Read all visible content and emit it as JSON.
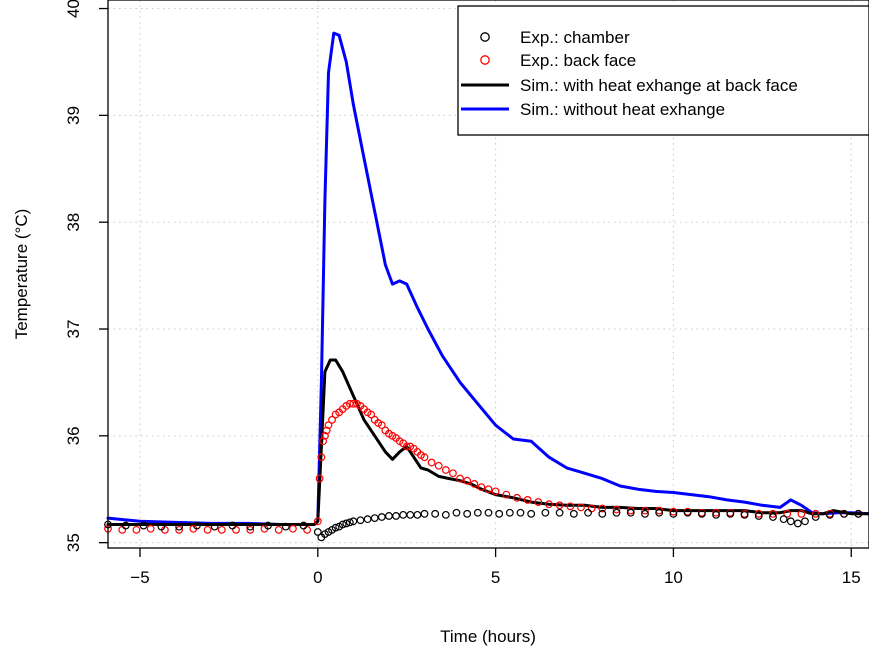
{
  "chart_data": {
    "type": "line",
    "title": "",
    "xlabel": "Time (hours)",
    "ylabel": "Temperature (°C)",
    "xlim": [
      -5.9,
      15.5
    ],
    "ylim": [
      34.95,
      40.08
    ],
    "x_ticks": [
      -5,
      0,
      5,
      10,
      15
    ],
    "x_tick_labels": [
      "−5",
      "0",
      "5",
      "10",
      "15"
    ],
    "y_ticks": [
      35,
      36,
      37,
      38,
      39,
      40
    ],
    "y_tick_labels": [
      "35",
      "36",
      "37",
      "38",
      "39",
      "40"
    ],
    "grid": true,
    "legend_position": "top-right",
    "legend": [
      {
        "label": "Exp.: chamber",
        "kind": "points",
        "color": "#000000"
      },
      {
        "label": "Exp.: back face",
        "kind": "points",
        "color": "#ff0000"
      },
      {
        "label": "Sim.: with heat exhange at back face",
        "kind": "line",
        "color": "#000000"
      },
      {
        "label": "Sim.: without heat exhange",
        "kind": "line",
        "color": "#0000ff"
      }
    ],
    "series": [
      {
        "name": "Sim.: without heat exhange",
        "kind": "line",
        "color": "#0000ff",
        "x": [
          -5.9,
          -5,
          -4,
          -3,
          -2,
          -1,
          -0.5,
          -0.1,
          0,
          0.1,
          0.2,
          0.3,
          0.45,
          0.6,
          0.8,
          1.0,
          1.3,
          1.6,
          1.9,
          2.1,
          2.3,
          2.5,
          2.8,
          3.1,
          3.5,
          4,
          4.5,
          5,
          5.5,
          6,
          6.5,
          7,
          7.5,
          8,
          8.5,
          9,
          9.5,
          10,
          10.5,
          11,
          11.5,
          12,
          12.5,
          13,
          13.3,
          13.6,
          13.9,
          14.2,
          14.6,
          15,
          15.5
        ],
        "y": [
          35.23,
          35.2,
          35.19,
          35.18,
          35.18,
          35.17,
          35.17,
          35.17,
          35.2,
          36.5,
          38.2,
          39.4,
          39.77,
          39.75,
          39.5,
          39.1,
          38.6,
          38.1,
          37.6,
          37.42,
          37.45,
          37.42,
          37.2,
          37.0,
          36.75,
          36.5,
          36.3,
          36.1,
          35.97,
          35.95,
          35.8,
          35.7,
          35.65,
          35.6,
          35.53,
          35.5,
          35.48,
          35.47,
          35.45,
          35.43,
          35.4,
          35.38,
          35.35,
          35.33,
          35.4,
          35.35,
          35.28,
          35.27,
          35.28,
          35.28,
          35.27
        ]
      },
      {
        "name": "Sim.: with heat exhange at back face",
        "kind": "line",
        "color": "#000000",
        "x": [
          -5.9,
          -5,
          -4,
          -3,
          -2,
          -1,
          -0.5,
          -0.1,
          0,
          0.1,
          0.2,
          0.35,
          0.5,
          0.7,
          0.9,
          1.1,
          1.3,
          1.6,
          1.9,
          2.1,
          2.3,
          2.5,
          2.7,
          2.9,
          3.1,
          3.4,
          3.7,
          4,
          4.3,
          4.6,
          5,
          5.5,
          6,
          6.5,
          7,
          7.5,
          8,
          8.5,
          9,
          9.5,
          10,
          10.5,
          11,
          11.5,
          12,
          12.5,
          13,
          13.3,
          13.6,
          13.9,
          14.2,
          14.5,
          15,
          15.5
        ],
        "y": [
          35.17,
          35.17,
          35.17,
          35.17,
          35.17,
          35.17,
          35.17,
          35.17,
          35.2,
          35.9,
          36.6,
          36.71,
          36.71,
          36.6,
          36.45,
          36.3,
          36.15,
          36.0,
          35.85,
          35.78,
          35.85,
          35.9,
          35.8,
          35.7,
          35.68,
          35.62,
          35.6,
          35.58,
          35.55,
          35.5,
          35.45,
          35.42,
          35.38,
          35.36,
          35.35,
          35.35,
          35.33,
          35.33,
          35.32,
          35.32,
          35.3,
          35.3,
          35.3,
          35.3,
          35.3,
          35.28,
          35.28,
          35.3,
          35.3,
          35.27,
          35.27,
          35.3,
          35.27,
          35.27
        ]
      },
      {
        "name": "Exp.: back face",
        "kind": "points",
        "color": "#ff0000",
        "x": [
          -5.9,
          -5.5,
          -5.1,
          -4.7,
          -4.3,
          -3.9,
          -3.5,
          -3.1,
          -2.7,
          -2.3,
          -1.9,
          -1.5,
          -1.1,
          -0.7,
          -0.3,
          0,
          0.05,
          0.1,
          0.15,
          0.2,
          0.25,
          0.3,
          0.4,
          0.5,
          0.6,
          0.7,
          0.8,
          0.9,
          1.0,
          1.1,
          1.2,
          1.3,
          1.4,
          1.5,
          1.6,
          1.7,
          1.8,
          1.9,
          2.0,
          2.1,
          2.2,
          2.3,
          2.4,
          2.5,
          2.6,
          2.7,
          2.8,
          2.9,
          3.0,
          3.2,
          3.4,
          3.6,
          3.8,
          4.0,
          4.2,
          4.4,
          4.6,
          4.8,
          5.0,
          5.3,
          5.6,
          5.9,
          6.2,
          6.5,
          6.8,
          7.1,
          7.4,
          7.7,
          8.0,
          8.4,
          8.8,
          9.2,
          9.6,
          10.0,
          10.4,
          10.8,
          11.2,
          11.6,
          12.0,
          12.4,
          12.8,
          13.2,
          13.6,
          14.0,
          14.4,
          14.8,
          15.2
        ],
        "y": [
          35.13,
          35.12,
          35.12,
          35.13,
          35.12,
          35.12,
          35.13,
          35.12,
          35.12,
          35.12,
          35.12,
          35.13,
          35.12,
          35.13,
          35.12,
          35.2,
          35.6,
          35.8,
          35.95,
          36.0,
          36.05,
          36.1,
          36.15,
          36.2,
          36.22,
          36.25,
          36.28,
          36.3,
          36.3,
          36.3,
          36.28,
          36.25,
          36.22,
          36.2,
          36.15,
          36.12,
          36.1,
          36.05,
          36.02,
          36.0,
          35.98,
          35.95,
          35.93,
          35.9,
          35.9,
          35.88,
          35.85,
          35.82,
          35.8,
          35.75,
          35.72,
          35.68,
          35.65,
          35.6,
          35.58,
          35.55,
          35.52,
          35.5,
          35.48,
          35.45,
          35.42,
          35.4,
          35.38,
          35.36,
          35.35,
          35.34,
          35.33,
          35.32,
          35.32,
          35.31,
          35.3,
          35.3,
          35.3,
          35.29,
          35.29,
          35.28,
          35.28,
          35.28,
          35.27,
          35.27,
          35.27,
          35.27,
          35.27,
          35.27,
          35.27,
          35.27,
          35.27
        ]
      },
      {
        "name": "Exp.: chamber",
        "kind": "points",
        "color": "#000000",
        "x": [
          -5.9,
          -5.4,
          -4.9,
          -4.4,
          -3.9,
          -3.4,
          -2.9,
          -2.4,
          -1.9,
          -1.4,
          -0.9,
          -0.4,
          0,
          0.1,
          0.2,
          0.3,
          0.4,
          0.5,
          0.6,
          0.7,
          0.8,
          0.9,
          1.0,
          1.2,
          1.4,
          1.6,
          1.8,
          2.0,
          2.2,
          2.4,
          2.6,
          2.8,
          3.0,
          3.3,
          3.6,
          3.9,
          4.2,
          4.5,
          4.8,
          5.1,
          5.4,
          5.7,
          6.0,
          6.4,
          6.8,
          7.2,
          7.6,
          8.0,
          8.4,
          8.8,
          9.2,
          9.6,
          10.0,
          10.4,
          10.8,
          11.2,
          11.6,
          12.0,
          12.4,
          12.8,
          13.1,
          13.3,
          13.5,
          13.7,
          14.0,
          14.4,
          14.8,
          15.2
        ],
        "y": [
          35.17,
          35.16,
          35.16,
          35.15,
          35.15,
          35.16,
          35.15,
          35.16,
          35.15,
          35.16,
          35.15,
          35.16,
          35.1,
          35.05,
          35.08,
          35.1,
          35.12,
          35.14,
          35.15,
          35.17,
          35.18,
          35.19,
          35.2,
          35.21,
          35.22,
          35.23,
          35.24,
          35.25,
          35.25,
          35.26,
          35.26,
          35.26,
          35.27,
          35.27,
          35.26,
          35.28,
          35.27,
          35.28,
          35.28,
          35.27,
          35.28,
          35.28,
          35.27,
          35.28,
          35.28,
          35.27,
          35.28,
          35.27,
          35.28,
          35.28,
          35.27,
          35.28,
          35.27,
          35.28,
          35.27,
          35.26,
          35.27,
          35.26,
          35.25,
          35.24,
          35.22,
          35.2,
          35.18,
          35.2,
          35.24,
          35.26,
          35.27,
          35.27
        ]
      }
    ]
  }
}
